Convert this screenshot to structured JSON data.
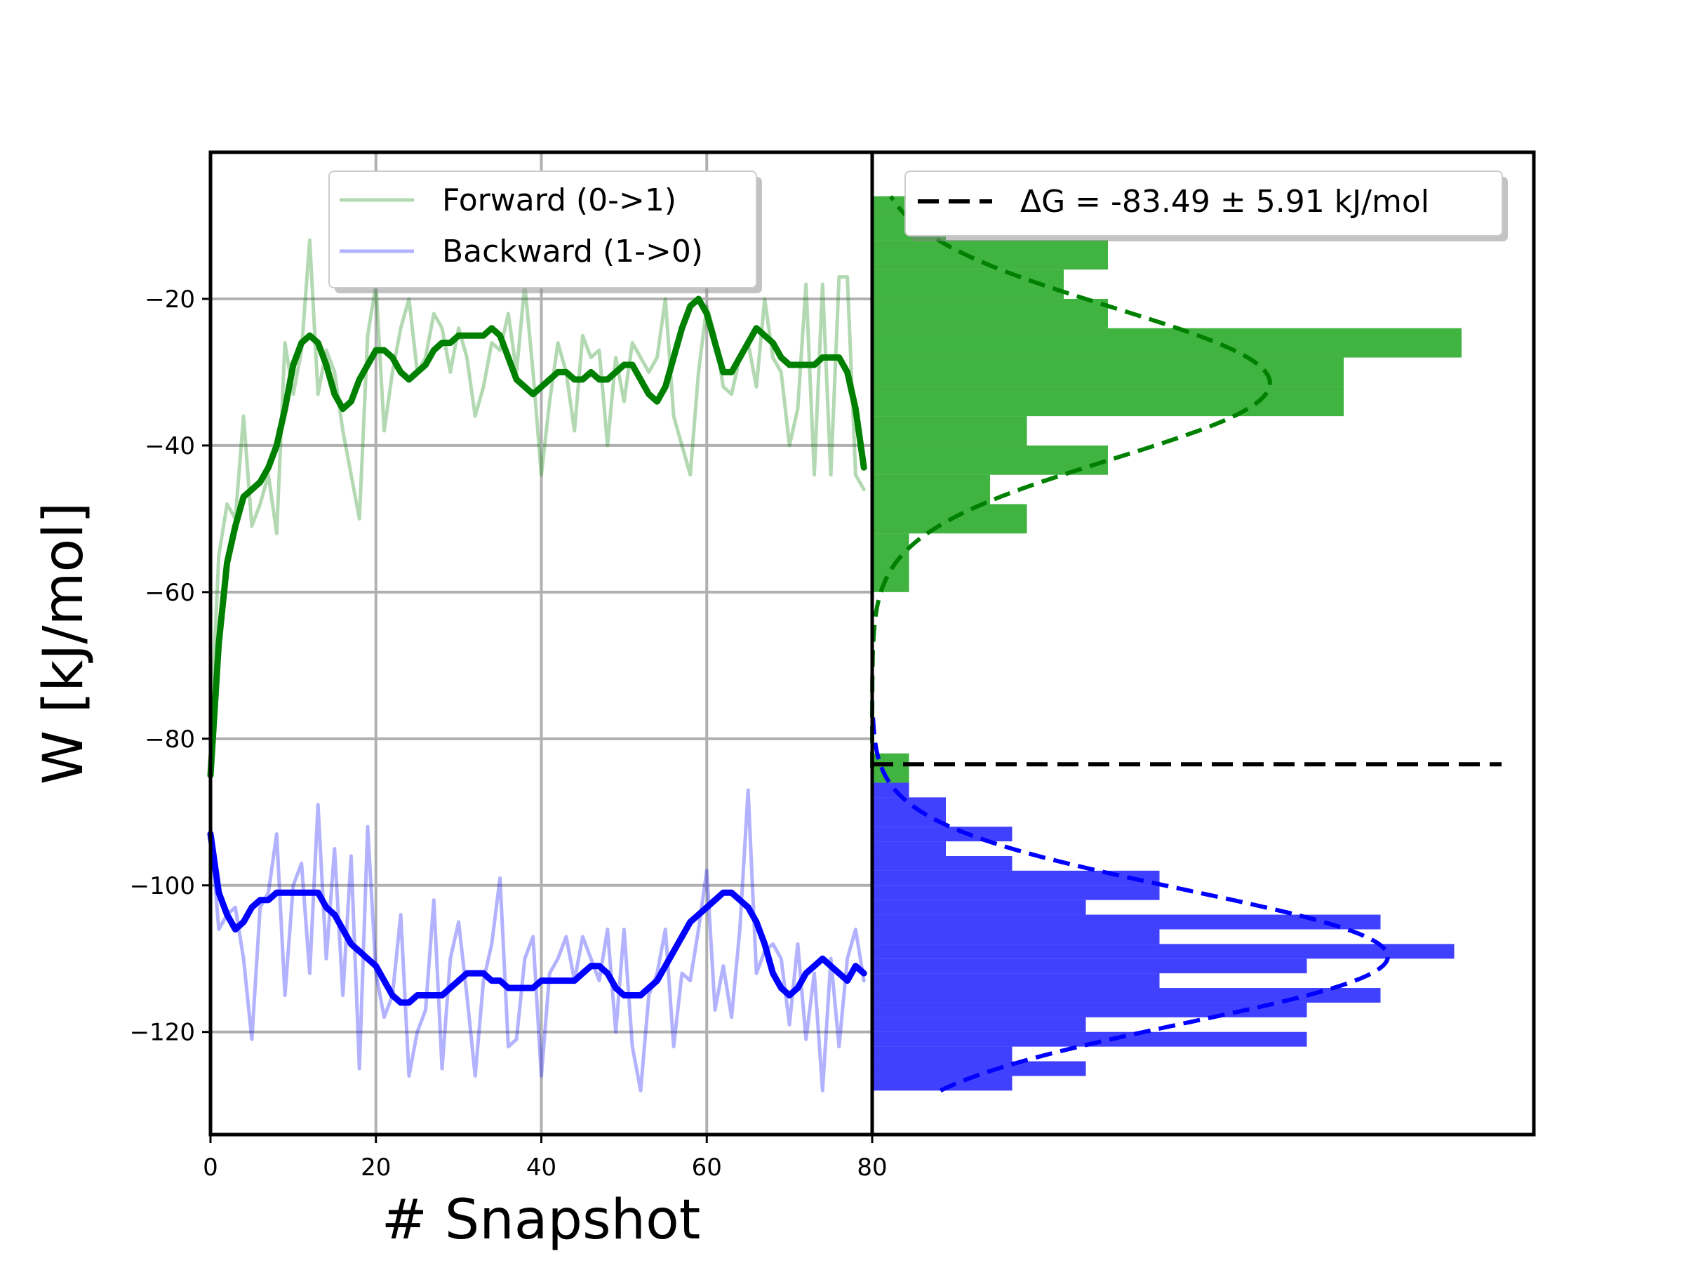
{
  "chart_data": [
    {
      "panel": "work-timeseries",
      "type": "line",
      "xlabel": "# Snapshot",
      "ylabel": "W [kJ/mol]",
      "xlim": [
        0,
        80
      ],
      "ylim": [
        -134,
        0
      ],
      "xticks": [
        0,
        20,
        40,
        60,
        80
      ],
      "yticks": [
        -120,
        -100,
        -80,
        -60,
        -40,
        -20
      ],
      "grid": true,
      "legend": {
        "placement": "top-center"
      },
      "series": [
        {
          "name": "Forward (0->1)",
          "color": "#008000",
          "alpha": 0.3,
          "x": [
            0,
            1,
            2,
            3,
            4,
            5,
            6,
            7,
            8,
            9,
            10,
            11,
            12,
            13,
            14,
            15,
            16,
            17,
            18,
            19,
            20,
            21,
            22,
            23,
            24,
            25,
            26,
            27,
            28,
            29,
            30,
            31,
            32,
            33,
            34,
            35,
            36,
            37,
            38,
            39,
            40,
            41,
            42,
            43,
            44,
            45,
            46,
            47,
            48,
            49,
            50,
            51,
            52,
            53,
            54,
            55,
            56,
            57,
            58,
            59,
            60,
            61,
            62,
            63,
            64,
            65,
            66,
            67,
            68,
            69,
            70,
            71,
            72,
            73,
            74,
            75,
            76,
            77,
            78,
            79
          ],
          "values": [
            -80,
            -55,
            -48,
            -50,
            -36,
            -51,
            -48,
            -44,
            -52,
            -26,
            -33,
            -27,
            -12,
            -33,
            -27,
            -30,
            -38,
            -44,
            -50,
            -25,
            -18,
            -38,
            -30,
            -24,
            -20,
            -30,
            -28,
            -22,
            -24,
            -30,
            -24,
            -28,
            -36,
            -32,
            -26,
            -27,
            -22,
            -30,
            -18,
            -30,
            -44,
            -34,
            -26,
            -30,
            -38,
            -25,
            -28,
            -27,
            -40,
            -28,
            -34,
            -26,
            -28,
            -30,
            -28,
            -20,
            -36,
            -40,
            -44,
            -30,
            -21,
            -25,
            -32,
            -33,
            -28,
            -26,
            -32,
            -20,
            -28,
            -30,
            -40,
            -35,
            -18,
            -44,
            -18,
            -44,
            -17,
            -17,
            -44,
            -46
          ]
        },
        {
          "name": "Backward (1->0)",
          "color": "#0000ff",
          "alpha": 0.3,
          "x": [
            0,
            1,
            2,
            3,
            4,
            5,
            6,
            7,
            8,
            9,
            10,
            11,
            12,
            13,
            14,
            15,
            16,
            17,
            18,
            19,
            20,
            21,
            22,
            23,
            24,
            25,
            26,
            27,
            28,
            29,
            30,
            31,
            32,
            33,
            34,
            35,
            36,
            37,
            38,
            39,
            40,
            41,
            42,
            43,
            44,
            45,
            46,
            47,
            48,
            49,
            50,
            51,
            52,
            53,
            54,
            55,
            56,
            57,
            58,
            59,
            60,
            61,
            62,
            63,
            64,
            65,
            66,
            67,
            68,
            69,
            70,
            71,
            72,
            73,
            74,
            75,
            76,
            77,
            78,
            79
          ],
          "values": [
            -92,
            -106,
            -104,
            -103,
            -110,
            -121,
            -103,
            -101,
            -93,
            -115,
            -100,
            -97,
            -112,
            -89,
            -110,
            -95,
            -115,
            -96,
            -125,
            -92,
            -112,
            -118,
            -115,
            -104,
            -126,
            -120,
            -117,
            -102,
            -125,
            -110,
            -105,
            -115,
            -126,
            -113,
            -108,
            -99,
            -122,
            -121,
            -110,
            -107,
            -126,
            -112,
            -110,
            -107,
            -113,
            -107,
            -110,
            -113,
            -106,
            -120,
            -106,
            -122,
            -128,
            -115,
            -112,
            -106,
            -122,
            -112,
            -113,
            -106,
            -98,
            -117,
            -111,
            -118,
            -106,
            -87,
            -112,
            -109,
            -108,
            -110,
            -119,
            -108,
            -121,
            -112,
            -128,
            -110,
            -122,
            -110,
            -106,
            -113
          ]
        },
        {
          "color": "#008000",
          "alpha": 1.0,
          "x": [
            0,
            1,
            2,
            3,
            4,
            5,
            6,
            7,
            8,
            9,
            10,
            11,
            12,
            13,
            14,
            15,
            16,
            17,
            18,
            19,
            20,
            21,
            22,
            23,
            24,
            25,
            26,
            27,
            28,
            29,
            30,
            31,
            32,
            33,
            34,
            35,
            36,
            37,
            38,
            39,
            40,
            41,
            42,
            43,
            44,
            45,
            46,
            47,
            48,
            49,
            50,
            51,
            52,
            53,
            54,
            55,
            56,
            57,
            58,
            59,
            60,
            61,
            62,
            63,
            64,
            65,
            66,
            67,
            68,
            69,
            70,
            71,
            72,
            73,
            74,
            75,
            76,
            77,
            78,
            79
          ],
          "values": [
            -85,
            -67,
            -56,
            -51,
            -47,
            -46,
            -45,
            -43,
            -40,
            -35,
            -29,
            -26,
            -25,
            -26,
            -29,
            -33,
            -35,
            -34,
            -31,
            -29,
            -27,
            -27,
            -28,
            -30,
            -31,
            -30,
            -29,
            -27,
            -26,
            -26,
            -25,
            -25,
            -25,
            -25,
            -24,
            -25,
            -28,
            -31,
            -32,
            -33,
            -32,
            -31,
            -30,
            -30,
            -31,
            -31,
            -30,
            -31,
            -31,
            -30,
            -29,
            -29,
            -31,
            -33,
            -34,
            -32,
            -28,
            -24,
            -21,
            -20,
            -22,
            -26,
            -30,
            -30,
            -28,
            -26,
            -24,
            -25,
            -26,
            -28,
            -29,
            -29,
            -29,
            -29,
            -28,
            -28,
            -28,
            -30,
            -35,
            -43
          ]
        },
        {
          "color": "#0000ff",
          "alpha": 1.0,
          "x": [
            0,
            1,
            2,
            3,
            4,
            5,
            6,
            7,
            8,
            9,
            10,
            11,
            12,
            13,
            14,
            15,
            16,
            17,
            18,
            19,
            20,
            21,
            22,
            23,
            24,
            25,
            26,
            27,
            28,
            29,
            30,
            31,
            32,
            33,
            34,
            35,
            36,
            37,
            38,
            39,
            40,
            41,
            42,
            43,
            44,
            45,
            46,
            47,
            48,
            49,
            50,
            51,
            52,
            53,
            54,
            55,
            56,
            57,
            58,
            59,
            60,
            61,
            62,
            63,
            64,
            65,
            66,
            67,
            68,
            69,
            70,
            71,
            72,
            73,
            74,
            75,
            76,
            77,
            78,
            79
          ],
          "values": [
            -93,
            -101,
            -104,
            -106,
            -105,
            -103,
            -102,
            -102,
            -101,
            -101,
            -101,
            -101,
            -101,
            -101,
            -103,
            -104,
            -106,
            -108,
            -109,
            -110,
            -111,
            -113,
            -115,
            -116,
            -116,
            -115,
            -115,
            -115,
            -115,
            -114,
            -113,
            -112,
            -112,
            -112,
            -113,
            -113,
            -114,
            -114,
            -114,
            -114,
            -113,
            -113,
            -113,
            -113,
            -113,
            -112,
            -111,
            -111,
            -112,
            -114,
            -115,
            -115,
            -115,
            -114,
            -113,
            -111,
            -109,
            -107,
            -105,
            -104,
            -103,
            -102,
            -101,
            -101,
            -102,
            -103,
            -105,
            -108,
            -112,
            -114,
            -115,
            -114,
            -112,
            -111,
            -110,
            -111,
            -112,
            -113,
            -111,
            -112
          ]
        }
      ]
    },
    {
      "panel": "work-distribution",
      "type": "bar",
      "orientation": "horizontal",
      "ylim": [
        -134,
        0
      ],
      "legend": {
        "placement": "top-right"
      },
      "reference_line": {
        "name": "ΔG = -83.49 ± 5.91 kJ/mol",
        "value": -83.49,
        "color": "#000000",
        "style": "dashed"
      },
      "histograms": [
        {
          "color": "#009900",
          "bins": [
            {
              "y0": -86,
              "y1": -82,
              "count": 5
            },
            {
              "y0": -60,
              "y1": -52,
              "count": 5
            },
            {
              "y0": -52,
              "y1": -48,
              "count": 21
            },
            {
              "y0": -48,
              "y1": -44,
              "count": 16
            },
            {
              "y0": -44,
              "y1": -40,
              "count": 32
            },
            {
              "y0": -40,
              "y1": -36,
              "count": 21
            },
            {
              "y0": -36,
              "y1": -32,
              "count": 64
            },
            {
              "y0": -32,
              "y1": -28,
              "count": 64
            },
            {
              "y0": -28,
              "y1": -24,
              "count": 80
            },
            {
              "y0": -24,
              "y1": -20,
              "count": 32
            },
            {
              "y0": -20,
              "y1": -16,
              "count": 26
            },
            {
              "y0": -16,
              "y1": -12,
              "count": 32
            },
            {
              "y0": -12,
              "y1": -8,
              "count": 10
            },
            {
              "y0": -8,
              "y1": -6,
              "count": 5
            }
          ]
        },
        {
          "color": "#0000ff",
          "bins": [
            {
              "y0": -128,
              "y1": -126,
              "count": 19
            },
            {
              "y0": -126,
              "y1": -124,
              "count": 29
            },
            {
              "y0": -124,
              "y1": -122,
              "count": 19
            },
            {
              "y0": -122,
              "y1": -120,
              "count": 59
            },
            {
              "y0": -120,
              "y1": -118,
              "count": 29
            },
            {
              "y0": -118,
              "y1": -116,
              "count": 59
            },
            {
              "y0": -116,
              "y1": -114,
              "count": 69
            },
            {
              "y0": -114,
              "y1": -112,
              "count": 39
            },
            {
              "y0": -112,
              "y1": -110,
              "count": 59
            },
            {
              "y0": -110,
              "y1": -108,
              "count": 79
            },
            {
              "y0": -108,
              "y1": -106,
              "count": 39
            },
            {
              "y0": -106,
              "y1": -104,
              "count": 69
            },
            {
              "y0": -104,
              "y1": -102,
              "count": 29
            },
            {
              "y0": -102,
              "y1": -100,
              "count": 39
            },
            {
              "y0": -100,
              "y1": -98,
              "count": 39
            },
            {
              "y0": -98,
              "y1": -96,
              "count": 19
            },
            {
              "y0": -96,
              "y1": -94,
              "count": 10
            },
            {
              "y0": -94,
              "y1": -92,
              "count": 19
            },
            {
              "y0": -92,
              "y1": -88,
              "count": 10
            },
            {
              "y0": -88,
              "y1": -86,
              "count": 5
            }
          ]
        }
      ],
      "gaussian_fits": [
        {
          "color": "#008000",
          "style": "dashed",
          "mean": -31.5,
          "sd": 10.3,
          "peak_count": 54,
          "y_range": [
            -84,
            -6
          ]
        },
        {
          "color": "#0000ff",
          "style": "dashed",
          "mean": -109.7,
          "sd": 9.1,
          "peak_count": 70,
          "y_range": [
            -128,
            -76
          ]
        }
      ]
    }
  ]
}
